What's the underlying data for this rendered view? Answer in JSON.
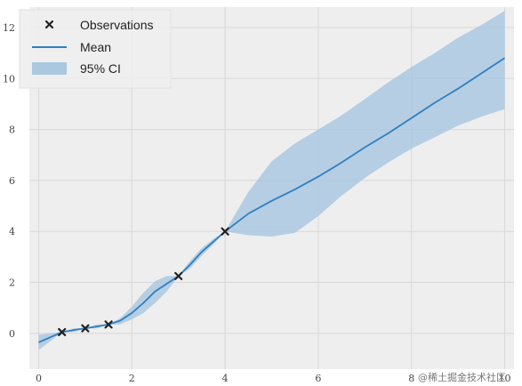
{
  "chart_data": {
    "type": "line",
    "title": "",
    "xlabel": "",
    "ylabel": "",
    "xlim": [
      -0.2,
      10.2
    ],
    "ylim": [
      -1.4,
      12.8
    ],
    "xticks": [
      0,
      2,
      4,
      6,
      8,
      10
    ],
    "yticks": [
      0,
      2,
      4,
      6,
      8,
      10,
      12
    ],
    "grid": true,
    "legend_position": "top-left",
    "observations": {
      "name": "Observations",
      "x": [
        0.5,
        1.0,
        1.5,
        3.0,
        4.0
      ],
      "y": [
        0.05,
        0.2,
        0.35,
        2.25,
        4.0
      ]
    },
    "mean": {
      "name": "Mean",
      "x": [
        0,
        0.25,
        0.5,
        0.75,
        1.0,
        1.25,
        1.5,
        1.75,
        2.0,
        2.25,
        2.5,
        2.75,
        3.0,
        3.25,
        3.5,
        3.75,
        4.0,
        4.5,
        5.0,
        5.5,
        6.0,
        6.5,
        7.0,
        7.5,
        8.0,
        8.5,
        9.0,
        9.5,
        10.0
      ],
      "y": [
        -0.35,
        -0.15,
        0.05,
        0.13,
        0.2,
        0.27,
        0.35,
        0.5,
        0.8,
        1.2,
        1.65,
        1.95,
        2.25,
        2.7,
        3.2,
        3.6,
        4.0,
        4.7,
        5.2,
        5.65,
        6.15,
        6.7,
        7.3,
        7.85,
        8.45,
        9.05,
        9.6,
        10.2,
        10.8
      ]
    },
    "ci": {
      "name": "95% CI",
      "x": [
        0,
        0.25,
        0.5,
        0.75,
        1.0,
        1.25,
        1.5,
        1.75,
        2.0,
        2.25,
        2.5,
        2.75,
        3.0,
        3.25,
        3.5,
        3.75,
        4.0,
        4.5,
        5.0,
        5.5,
        6.0,
        6.5,
        7.0,
        7.5,
        8.0,
        8.5,
        9.0,
        9.5,
        10.0
      ],
      "lower": [
        -0.65,
        -0.3,
        0.05,
        0.05,
        0.2,
        0.2,
        0.35,
        0.35,
        0.55,
        0.8,
        1.2,
        1.65,
        2.25,
        2.55,
        3.05,
        3.5,
        4.0,
        3.85,
        3.8,
        3.95,
        4.6,
        5.4,
        6.1,
        6.7,
        7.25,
        7.7,
        8.15,
        8.5,
        8.8
      ],
      "upper": [
        -0.05,
        0.0,
        0.05,
        0.2,
        0.2,
        0.35,
        0.35,
        0.6,
        1.05,
        1.6,
        2.05,
        2.25,
        2.25,
        2.85,
        3.35,
        3.7,
        4.0,
        5.55,
        6.75,
        7.45,
        8.0,
        8.55,
        9.2,
        9.85,
        10.45,
        11.0,
        11.6,
        12.1,
        12.65
      ]
    },
    "colors": {
      "background": "#eeeeee",
      "grid": "#d8d8d8",
      "mean_line": "#2f7fc1",
      "ci_fill": "#aac8e0",
      "marker": "#222222"
    }
  },
  "legend": {
    "items": [
      {
        "label": "Observations",
        "icon": "x-marker-icon"
      },
      {
        "label": "Mean",
        "icon": "line-icon"
      },
      {
        "label": "95% CI",
        "icon": "patch-icon"
      }
    ]
  },
  "watermark": "@稀土掘金技术社区"
}
